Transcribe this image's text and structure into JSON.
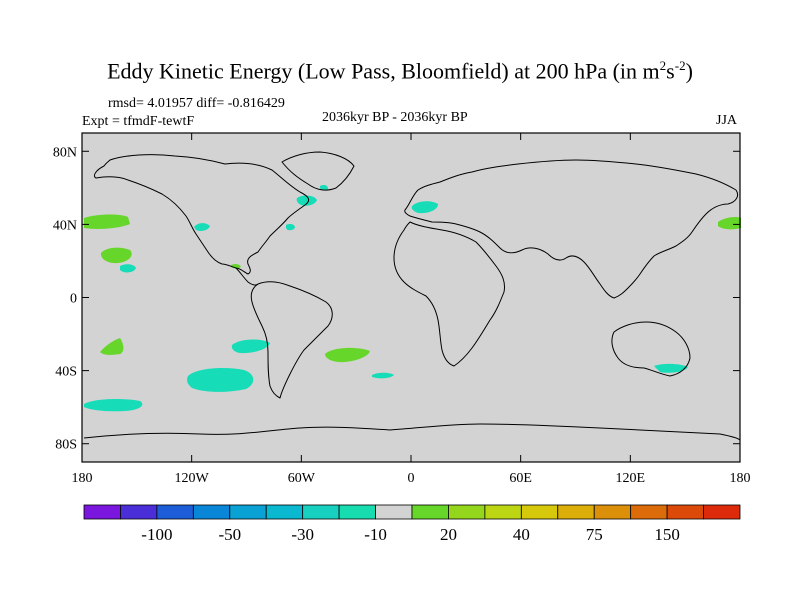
{
  "title": {
    "main": "Eddy Kinetic Energy (Low Pass, Bloomfield) at 200 hPa (in m",
    "sup1": "2",
    "mid": "s",
    "sup2": "-2",
    "close": ")"
  },
  "stats": "rmsd= 4.01957 diff= -0.816429",
  "experiment": "Expt = tfmdF-tewtF",
  "period": "2036kyr BP - 2036kyr BP",
  "season": "JJA",
  "map": {
    "lat_labels": [
      "80N",
      "40N",
      "0",
      "40S",
      "80S"
    ],
    "lon_labels": [
      "180",
      "120W",
      "60W",
      "0",
      "60E",
      "120E",
      "180"
    ],
    "lat_range": [
      -90,
      90
    ],
    "lon_range": [
      -180,
      180
    ],
    "background_color": "#d3d3d3",
    "anomaly_regions": [
      {
        "sign": "positive",
        "color": "#66d62a",
        "lon": -170,
        "lat": 42
      },
      {
        "sign": "positive",
        "color": "#66d62a",
        "lon": 175,
        "lat": 42
      },
      {
        "sign": "positive",
        "color": "#66d62a",
        "lon": -158,
        "lat": 23
      },
      {
        "sign": "positive",
        "color": "#66d62a",
        "lon": -164,
        "lat": -27
      },
      {
        "sign": "positive",
        "color": "#66d62a",
        "lon": -32,
        "lat": -31
      },
      {
        "sign": "negative",
        "color": "#17dcb8",
        "lon": -102,
        "lat": -46
      },
      {
        "sign": "negative",
        "color": "#17dcb8",
        "lon": -164,
        "lat": -59
      },
      {
        "sign": "negative",
        "color": "#17dcb8",
        "lon": -86,
        "lat": -25
      },
      {
        "sign": "negative",
        "color": "#17dcb8",
        "lon": 8,
        "lat": 50
      },
      {
        "sign": "negative",
        "color": "#17dcb8",
        "lon": -58,
        "lat": 53
      },
      {
        "sign": "negative",
        "color": "#17dcb8",
        "lon": -112,
        "lat": 38
      },
      {
        "sign": "negative",
        "color": "#17dcb8",
        "lon": 140,
        "lat": -39
      }
    ]
  },
  "colorbar": {
    "colors": [
      "#7b16de",
      "#4a2ed8",
      "#1d5ed8",
      "#0a86d8",
      "#0aa2d4",
      "#0ab8d0",
      "#17d0c0",
      "#17dcb0",
      "#d3d3d3",
      "#66d62a",
      "#94d61c",
      "#bcd614",
      "#d6c80a",
      "#dcae0a",
      "#dc900a",
      "#dc6c0a",
      "#dc4a0a",
      "#dc2a0a"
    ],
    "labels": [
      {
        "text": "-100",
        "boundary": 2
      },
      {
        "text": "-50",
        "boundary": 4
      },
      {
        "text": "-30",
        "boundary": 6
      },
      {
        "text": "-10",
        "boundary": 8
      },
      {
        "text": "20",
        "boundary": 10
      },
      {
        "text": "40",
        "boundary": 12
      },
      {
        "text": "75",
        "boundary": 14
      },
      {
        "text": "150",
        "boundary": 16
      }
    ]
  }
}
